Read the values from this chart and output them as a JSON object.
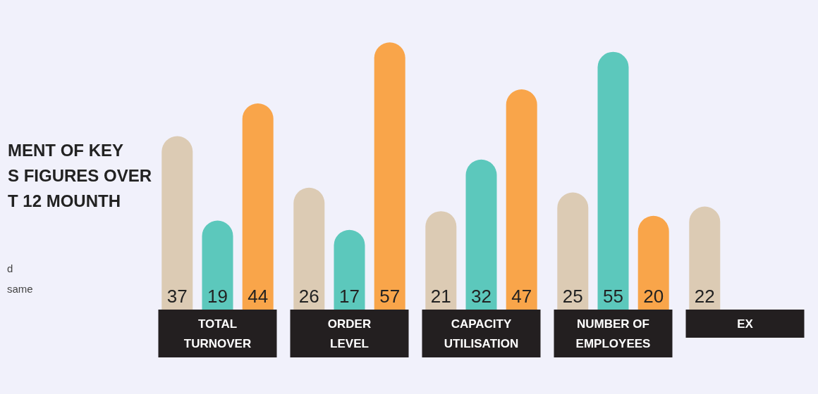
{
  "chart_data": {
    "type": "bar",
    "title": "MENT OF KEY\nS FIGURES OVER\nT 12 MOUNTH",
    "annotations": [
      "d",
      "same"
    ],
    "categories": [
      "TOTAL\nTURNOVER",
      "ORDER\nLEVEL",
      "CAPACITY\nUTILISATION",
      "NUMBER OF\nEMPLOYEES",
      "EX"
    ],
    "series": [
      {
        "color": "#dccbb4",
        "values": [
          37,
          26,
          21,
          25,
          22
        ]
      },
      {
        "color": "#5cc8bc",
        "values": [
          19,
          17,
          32,
          55,
          null
        ]
      },
      {
        "color": "#f9a54a",
        "values": [
          44,
          57,
          47,
          20,
          null
        ]
      }
    ],
    "data_labels": true
  }
}
